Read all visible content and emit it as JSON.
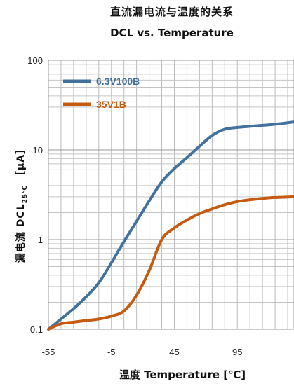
{
  "chart_data": {
    "type": "line",
    "title": "直流漏电流与温度的关系",
    "subtitle": "DCL vs. Temperature",
    "xlabel": "温度 Temperature [℃]",
    "ylabel_main": "漏电流 DCL",
    "ylabel_sub": "25℃",
    "ylabel_unit": "［μA］",
    "x_ticks": [
      "-55",
      "-5",
      "45",
      "95"
    ],
    "y_ticks": [
      "0.1",
      "1",
      "10",
      "100"
    ],
    "xlim": [
      -55,
      140
    ],
    "ylim": [
      0.1,
      100
    ],
    "y_scale": "log",
    "grid": true,
    "legend_position": "top-left",
    "series": [
      {
        "name": "6.3V100B",
        "color": "#41719c",
        "x": [
          -55,
          -45,
          -35,
          -25,
          -15,
          -5,
          5,
          15,
          25,
          35,
          45,
          55,
          65,
          75,
          85,
          95,
          105,
          115,
          125,
          140
        ],
        "y": [
          0.1,
          0.13,
          0.17,
          0.23,
          0.33,
          0.55,
          0.95,
          1.6,
          2.7,
          4.4,
          6.2,
          8.2,
          11,
          14.5,
          17,
          17.8,
          18.3,
          18.8,
          19.3,
          20.5
        ]
      },
      {
        "name": "35V1B",
        "color": "#c55a11",
        "x": [
          -55,
          -45,
          -35,
          -25,
          -15,
          -5,
          5,
          15,
          25,
          35,
          45,
          55,
          65,
          75,
          85,
          95,
          105,
          115,
          125,
          140
        ],
        "y": [
          0.1,
          0.115,
          0.12,
          0.125,
          0.13,
          0.14,
          0.16,
          0.24,
          0.45,
          1.0,
          1.35,
          1.65,
          1.95,
          2.2,
          2.45,
          2.65,
          2.78,
          2.88,
          2.95,
          3.0
        ]
      }
    ]
  }
}
